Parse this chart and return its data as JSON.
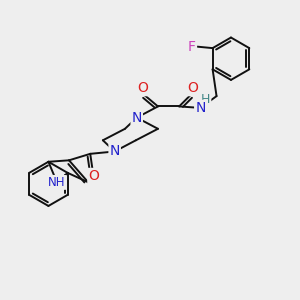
{
  "background_color": "#eeeeee",
  "atoms": {
    "F": {
      "color": "#cc44bb"
    },
    "N": {
      "color": "#2222cc"
    },
    "O": {
      "color": "#dd2222"
    },
    "H": {
      "color": "#448888"
    }
  },
  "bond_color": "#111111",
  "bond_lw": 1.4
}
